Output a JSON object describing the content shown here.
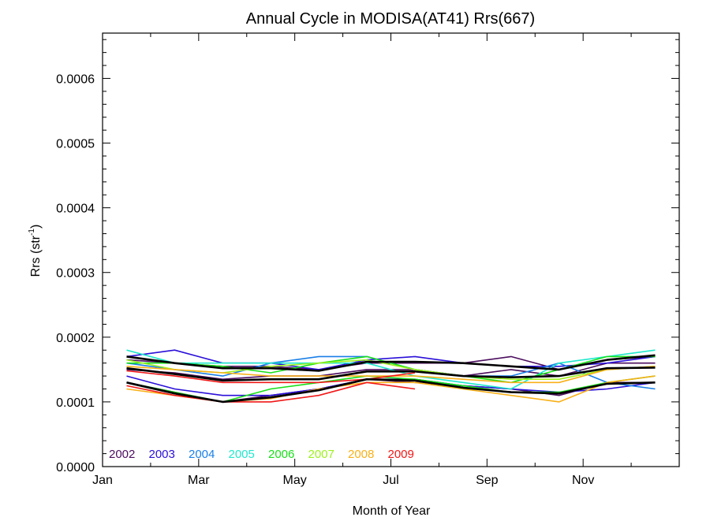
{
  "chart_data": {
    "type": "line",
    "title": "Annual Cycle in MODISA(AT41) Rrs(667)",
    "xlabel": "Month of Year",
    "ylabel_main": "Rrs (str",
    "ylabel_sup": "-1",
    "ylabel_close": ")",
    "xlim": [
      0,
      12
    ],
    "ylim": [
      0,
      0.00067
    ],
    "x": [
      0.5,
      1.5,
      2.5,
      3.5,
      4.5,
      5.5,
      6.5,
      7.5,
      8.5,
      9.5,
      10.5,
      11.5
    ],
    "xticks": [
      {
        "label": "Jan",
        "value": 0
      },
      {
        "label": "Mar",
        "value": 2
      },
      {
        "label": "May",
        "value": 4
      },
      {
        "label": "Jul",
        "value": 6
      },
      {
        "label": "Sep",
        "value": 8
      },
      {
        "label": "Nov",
        "value": 10
      }
    ],
    "yticks": [
      {
        "label": "0.0000",
        "value": 0
      },
      {
        "label": "0.0001",
        "value": 0.0001
      },
      {
        "label": "0.0002",
        "value": 0.0002
      },
      {
        "label": "0.0003",
        "value": 0.0003
      },
      {
        "label": "0.0004",
        "value": 0.0004
      },
      {
        "label": "0.0005",
        "value": 0.0005
      },
      {
        "label": "0.0006",
        "value": 0.0006
      }
    ],
    "legend_placement": "bottom-left",
    "series": [
      {
        "name": "2002",
        "color": "#4b0d5e",
        "values": [
          0.00013,
          0.000115,
          0.0001,
          0.00011,
          0.00012,
          0.000135,
          0.00013,
          0.000125,
          0.00012,
          0.00011,
          0.00013,
          0.00013
        ]
      },
      {
        "name": "2002",
        "color": "#4b0d5e",
        "values": [
          0.00015,
          0.000145,
          0.000135,
          0.00014,
          0.00014,
          0.00015,
          0.00015,
          0.00014,
          0.00015,
          0.00014,
          0.00016,
          0.00016
        ]
      },
      {
        "name": "2002",
        "color": "#4b0d5e",
        "values": [
          0.000165,
          0.00016,
          0.000155,
          0.000155,
          0.00015,
          0.00016,
          0.00016,
          0.00016,
          0.00017,
          0.00015,
          0.000165,
          0.00017
        ]
      },
      {
        "name": "2003",
        "color": "#2a10d8",
        "values": [
          0.00014,
          0.00012,
          0.00011,
          0.00011,
          0.00012,
          0.000135,
          0.000135,
          0.000125,
          0.00012,
          0.000115,
          0.00012,
          0.00013
        ]
      },
      {
        "name": "2003",
        "color": "#2a10d8",
        "values": [
          0.00017,
          0.00018,
          0.00016,
          0.00016,
          0.00015,
          0.000165,
          0.00017,
          0.00016,
          0.000155,
          0.000155,
          0.00016,
          0.00017
        ]
      },
      {
        "name": "2004",
        "color": "#1a7fe8",
        "values": [
          0.00016,
          0.00015,
          0.00014,
          0.00016,
          0.00017,
          0.00017,
          0.00015,
          0.00014,
          0.00014,
          0.00016,
          0.00013,
          0.00012
        ]
      },
      {
        "name": "2005",
        "color": "#20e8cc",
        "values": [
          0.00018,
          0.00016,
          0.00016,
          0.00016,
          0.00016,
          0.00016,
          0.00014,
          0.00013,
          0.00012,
          0.00016,
          0.00017,
          0.00018
        ]
      },
      {
        "name": "2006",
        "color": "#18e018",
        "values": [
          0.00016,
          0.00016,
          0.000155,
          0.000145,
          0.00016,
          0.00017,
          0.00015,
          0.00014,
          0.00013,
          0.00015,
          0.00017,
          0.00017
        ]
      },
      {
        "name": "2006",
        "color": "#18e018",
        "values": [
          0.00013,
          0.000115,
          0.0001,
          0.00012,
          0.00013,
          0.00014,
          0.000135,
          0.000125,
          0.000115,
          0.000115,
          0.00013,
          0.00014
        ]
      },
      {
        "name": "2007",
        "color": "#9ef020",
        "values": [
          0.000165,
          0.00015,
          0.000145,
          0.000155,
          0.00016,
          0.000165,
          0.00015,
          0.00014,
          0.000135,
          0.000135,
          0.00015,
          0.000155
        ]
      },
      {
        "name": "2008",
        "color": "#f8b018",
        "values": [
          0.00012,
          0.00011,
          0.0001,
          0.000105,
          0.00012,
          0.00013,
          0.00013,
          0.00012,
          0.00011,
          0.0001,
          0.00013,
          0.00014
        ]
      },
      {
        "name": "2008",
        "color": "#f8b018",
        "values": [
          0.000155,
          0.00015,
          0.000145,
          0.00014,
          0.00014,
          0.00014,
          0.00014,
          0.000135,
          0.00013,
          0.00013,
          0.00015,
          0.000155
        ]
      },
      {
        "name": "2009",
        "color": "#f01818",
        "values": [
          0.000148,
          0.00014,
          0.00013,
          0.00013,
          0.00013,
          0.000135,
          0.000145,
          null,
          null,
          null,
          null,
          null
        ]
      },
      {
        "name": "2009",
        "color": "#f01818",
        "values": [
          0.000125,
          0.00011,
          0.0001,
          0.0001,
          0.00011,
          0.00013,
          0.00012,
          null,
          null,
          null,
          null,
          null
        ]
      }
    ],
    "mean_lines": [
      {
        "color": "#000000",
        "values": [
          0.00017,
          0.00016,
          0.000152,
          0.000152,
          0.000148,
          0.000162,
          0.000162,
          0.00016,
          0.000155,
          0.00015,
          0.000165,
          0.000172
        ]
      },
      {
        "color": "#000000",
        "values": [
          0.000152,
          0.000143,
          0.000133,
          0.000135,
          0.000135,
          0.000147,
          0.000147,
          0.00014,
          0.000138,
          0.00014,
          0.000152,
          0.000153
        ]
      },
      {
        "color": "#000000",
        "values": [
          0.00013,
          0.000113,
          0.0001,
          0.000107,
          0.000118,
          0.000135,
          0.000133,
          0.000122,
          0.000115,
          0.000113,
          0.000128,
          0.00013
        ]
      }
    ],
    "legend": [
      {
        "label": "2002",
        "color": "#4b0d5e"
      },
      {
        "label": "2003",
        "color": "#2a10d8"
      },
      {
        "label": "2004",
        "color": "#1a7fe8"
      },
      {
        "label": "2005",
        "color": "#20e8cc"
      },
      {
        "label": "2006",
        "color": "#18e018"
      },
      {
        "label": "2007",
        "color": "#9ef020"
      },
      {
        "label": "2008",
        "color": "#f8b018"
      },
      {
        "label": "2009",
        "color": "#f01818"
      }
    ]
  }
}
